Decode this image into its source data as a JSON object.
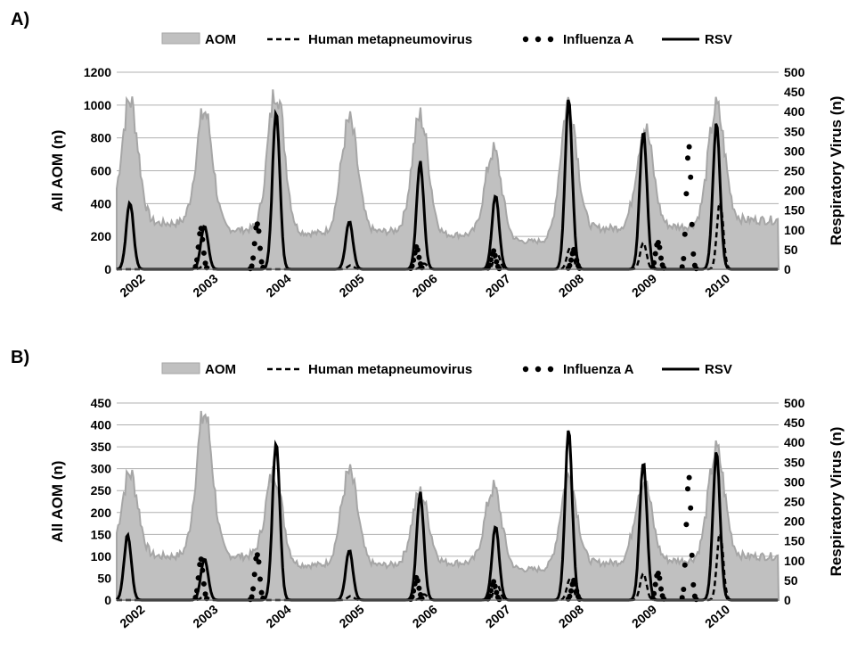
{
  "legend": {
    "aom": "AOM",
    "hmpv": "Human metapneumovirus",
    "flu": "Influenza A",
    "rsv": "RSV"
  },
  "colors": {
    "aom_fill": "#c0c0c0",
    "aom_line": "#a6a6a6",
    "virus": "#000000",
    "grid": "#b0b0b0"
  },
  "chart_data": [
    {
      "type": "area",
      "panel_label": "A)",
      "ylabel_left": "All AOM (n)",
      "ylabel_right": "Respiratory Virus (n)",
      "ylim_left": [
        0,
        1200
      ],
      "yticks_left": [
        0,
        200,
        400,
        600,
        800,
        1000,
        1200
      ],
      "ylim_right": [
        0,
        500
      ],
      "yticks_right": [
        0,
        50,
        100,
        150,
        200,
        250,
        300,
        350,
        400,
        450,
        500
      ],
      "x_categories": [
        "2002",
        "2003",
        "2004",
        "2005",
        "2006",
        "2007",
        "2008",
        "2009",
        "2010"
      ],
      "x_unit": "year (weekly data, start of 2002 to end of 2010)",
      "grid": true,
      "legend_position": "top",
      "series": [
        {
          "name": "AOM",
          "style": "area",
          "axis": "left",
          "peaks": [
            [
              2002.08,
              1030
            ],
            [
              2003.1,
              960
            ],
            [
              2004.08,
              1100
            ],
            [
              2005.08,
              900
            ],
            [
              2006.05,
              930
            ],
            [
              2007.05,
              720
            ],
            [
              2008.08,
              1020
            ],
            [
              2009.12,
              860
            ],
            [
              2010.1,
              980
            ]
          ],
          "troughs": [
            [
              2002.6,
              280
            ],
            [
              2003.6,
              240
            ],
            [
              2004.6,
              220
            ],
            [
              2005.6,
              230
            ],
            [
              2006.6,
              210
            ],
            [
              2007.6,
              170
            ],
            [
              2008.6,
              250
            ],
            [
              2009.6,
              260
            ],
            [
              2010.6,
              300
            ]
          ]
        },
        {
          "name": "RSV",
          "style": "solid",
          "axis": "right",
          "peaks": [
            [
              2002.08,
              170
            ],
            [
              2003.1,
              110
            ],
            [
              2004.08,
              410
            ],
            [
              2005.08,
              120
            ],
            [
              2006.05,
              270
            ],
            [
              2007.08,
              185
            ],
            [
              2008.08,
              430
            ],
            [
              2009.1,
              355
            ],
            [
              2010.1,
              365
            ]
          ]
        },
        {
          "name": "Human metapneumovirus",
          "style": "dashed",
          "axis": "right",
          "peaks": [
            [
              2003.1,
              10
            ],
            [
              2005.1,
              10
            ],
            [
              2006.1,
              15
            ],
            [
              2007.1,
              40
            ],
            [
              2008.1,
              55
            ],
            [
              2009.1,
              70
            ],
            [
              2010.15,
              170
            ]
          ]
        },
        {
          "name": "Influenza A",
          "style": "dotted",
          "axis": "right",
          "peaks": [
            [
              2003.05,
              100
            ],
            [
              2003.82,
              120
            ],
            [
              2006.0,
              55
            ],
            [
              2007.05,
              45
            ],
            [
              2008.15,
              50
            ],
            [
              2009.3,
              70
            ],
            [
              2009.72,
              320
            ]
          ]
        }
      ]
    },
    {
      "type": "area",
      "panel_label": "B)",
      "ylabel_left": "All AOM (n)",
      "ylabel_right": "Respiratory Virus (n)",
      "ylim_left": [
        0,
        450
      ],
      "yticks_left": [
        0,
        50,
        100,
        150,
        200,
        250,
        300,
        350,
        400,
        450
      ],
      "ylim_right": [
        0,
        500
      ],
      "yticks_right": [
        0,
        50,
        100,
        150,
        200,
        250,
        300,
        350,
        400,
        450,
        500
      ],
      "x_categories": [
        "2002",
        "2003",
        "2004",
        "2005",
        "2006",
        "2007",
        "2008",
        "2009",
        "2010"
      ],
      "x_unit": "year (weekly data, start of 2002 to end of 2010)",
      "grid": true,
      "legend_position": "top",
      "series": [
        {
          "name": "AOM",
          "style": "area",
          "axis": "left",
          "peaks": [
            [
              2002.08,
              290
            ],
            [
              2003.1,
              425
            ],
            [
              2004.05,
              290
            ],
            [
              2005.08,
              290
            ],
            [
              2006.05,
              245
            ],
            [
              2007.05,
              255
            ],
            [
              2008.08,
              280
            ],
            [
              2009.1,
              275
            ],
            [
              2010.1,
              340
            ]
          ],
          "troughs": [
            [
              2002.6,
              100
            ],
            [
              2003.6,
              100
            ],
            [
              2004.6,
              80
            ],
            [
              2005.6,
              80
            ],
            [
              2006.6,
              85
            ],
            [
              2007.6,
              70
            ],
            [
              2008.6,
              85
            ],
            [
              2009.6,
              90
            ],
            [
              2010.6,
              100
            ]
          ]
        },
        {
          "name": "RSV",
          "style": "solid",
          "axis": "right",
          "peaks": [
            [
              2002.05,
              165
            ],
            [
              2003.1,
              105
            ],
            [
              2004.08,
              410
            ],
            [
              2005.08,
              125
            ],
            [
              2006.05,
              270
            ],
            [
              2007.08,
              185
            ],
            [
              2008.08,
              430
            ],
            [
              2009.1,
              355
            ],
            [
              2010.1,
              370
            ]
          ]
        },
        {
          "name": "Human metapneumovirus",
          "style": "dashed",
          "axis": "right",
          "peaks": [
            [
              2003.1,
              10
            ],
            [
              2005.1,
              10
            ],
            [
              2006.1,
              15
            ],
            [
              2007.1,
              40
            ],
            [
              2008.1,
              55
            ],
            [
              2009.1,
              70
            ],
            [
              2010.15,
              170
            ]
          ]
        },
        {
          "name": "Influenza A",
          "style": "dotted",
          "axis": "right",
          "peaks": [
            [
              2003.05,
              100
            ],
            [
              2003.82,
              120
            ],
            [
              2006.0,
              55
            ],
            [
              2007.05,
              45
            ],
            [
              2008.15,
              50
            ],
            [
              2009.3,
              70
            ],
            [
              2009.72,
              320
            ]
          ]
        }
      ]
    }
  ]
}
